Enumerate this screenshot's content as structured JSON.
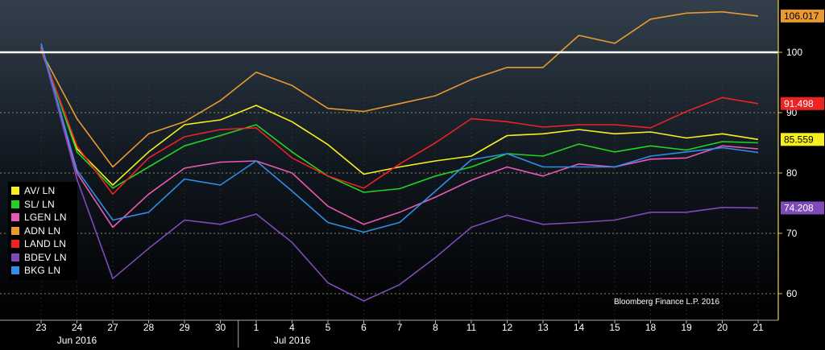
{
  "chart_data": {
    "type": "line",
    "x": [
      "23",
      "24",
      "27",
      "28",
      "29",
      "30",
      "1",
      "4",
      "5",
      "6",
      "7",
      "8",
      "11",
      "12",
      "13",
      "14",
      "15",
      "18",
      "19",
      "20",
      "21"
    ],
    "months": [
      {
        "label": "Jun 2016",
        "start_index": 0,
        "end_index": 5
      },
      {
        "label": "Jul 2016",
        "start_index": 6,
        "end_index": 20
      }
    ],
    "ylim": [
      57,
      110
    ],
    "yticks": [
      60,
      70,
      80,
      90,
      100
    ],
    "reference_line": 100,
    "series": [
      {
        "name": "AV/ LN",
        "color": "#f7f01e",
        "values": [
          100.4,
          84,
          78,
          83.5,
          88,
          88.8,
          91.2,
          88.5,
          84.7,
          79.8,
          81,
          82,
          82.8,
          86.2,
          86.5,
          87.2,
          86.5,
          86.8,
          85.8,
          86.5,
          85.559
        ]
      },
      {
        "name": "SL/ LN",
        "color": "#22d422",
        "values": [
          100.8,
          83.5,
          77.5,
          81,
          84.5,
          86.2,
          88,
          83.5,
          79.5,
          76.8,
          77.4,
          79.5,
          81,
          83.2,
          82.8,
          84.8,
          83.5,
          84.5,
          83.8,
          85.2,
          85.0
        ]
      },
      {
        "name": "LGEN LN",
        "color": "#ea58b6",
        "values": [
          101.0,
          80,
          71,
          76.5,
          80.8,
          81.8,
          82,
          80,
          74.5,
          71.5,
          73.5,
          76,
          78.8,
          81,
          79.5,
          81.5,
          81,
          82.3,
          82.5,
          84.5,
          84.0
        ]
      },
      {
        "name": "ADN LN",
        "color": "#e89a30",
        "values": [
          100.2,
          89,
          81,
          86.5,
          88.5,
          92,
          96.7,
          94.5,
          90.7,
          90.2,
          91.5,
          92.8,
          95.5,
          97.5,
          97.5,
          102.8,
          101.5,
          105.5,
          106.5,
          106.7,
          106.017
        ]
      },
      {
        "name": "LAND LN",
        "color": "#ee2222",
        "values": [
          100.5,
          84.5,
          76.5,
          82.5,
          86,
          87.2,
          87.5,
          82.5,
          79.5,
          77.5,
          81.5,
          85,
          89,
          88.5,
          87.6,
          88,
          88,
          87.5,
          90.2,
          92.5,
          91.498
        ]
      },
      {
        "name": "BDEV LN",
        "color": "#7e4ab8",
        "values": [
          101.3,
          79,
          62.5,
          67.5,
          72.2,
          71.5,
          73.2,
          68.5,
          61.8,
          58.8,
          61.5,
          66,
          71,
          73,
          71.5,
          71.8,
          72.2,
          73.5,
          73.5,
          74.3,
          74.208
        ]
      },
      {
        "name": "BKG LN",
        "color": "#2f8ee6",
        "values": [
          101.5,
          80.5,
          72.2,
          73.5,
          79,
          78,
          82,
          77,
          71.8,
          70.2,
          71.8,
          77,
          82.2,
          83.2,
          81,
          81,
          81,
          82.8,
          83.5,
          84.2,
          83.4
        ]
      }
    ],
    "end_value_labels": [
      {
        "text": "106.017",
        "color": "#e89a30",
        "text_color": "#000",
        "value": 106.017
      },
      {
        "text": "91.498",
        "color": "#ee2222",
        "text_color": "#fff",
        "value": 91.498
      },
      {
        "text": "85.559",
        "color": "#f7f01e",
        "text_color": "#000",
        "value": 85.559
      },
      {
        "text": "74.208",
        "color": "#7e4ab8",
        "text_color": "#fff",
        "value": 74.208
      }
    ]
  },
  "credit": "Bloomberg Finance L.P. 2016"
}
